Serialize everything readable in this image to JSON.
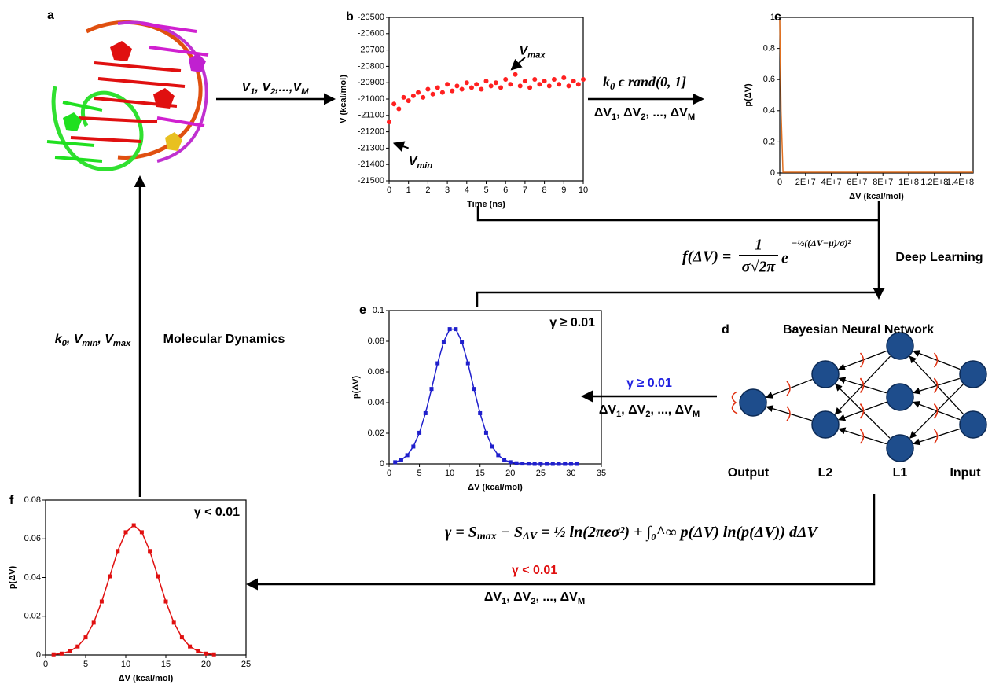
{
  "panel_labels": [
    "a",
    "b",
    "c",
    "d",
    "e",
    "f"
  ],
  "chart_data": [
    {
      "type": "scatter",
      "x_label": "Time (ns)",
      "y_label": "V (kcal/mol)",
      "color": "#ff2020",
      "xlim": [
        0,
        10
      ],
      "xticks": [
        0,
        1,
        2,
        3,
        4,
        5,
        6,
        7,
        8,
        9,
        10
      ],
      "ylim": [
        -21500,
        -20500
      ],
      "yticks": [
        -21500,
        -21400,
        -21300,
        -21200,
        -21100,
        -21000,
        -20900,
        -20800,
        -20700,
        -20600,
        -20500
      ],
      "x": [
        0,
        0.25,
        0.5,
        0.75,
        1,
        1.25,
        1.5,
        1.75,
        2,
        2.25,
        2.5,
        2.75,
        3,
        3.25,
        3.5,
        3.75,
        4,
        4.25,
        4.5,
        4.75,
        5,
        5.25,
        5.5,
        5.75,
        6,
        6.25,
        6.5,
        6.75,
        7,
        7.25,
        7.5,
        7.75,
        8,
        8.25,
        8.5,
        8.75,
        9,
        9.25,
        9.5,
        9.75,
        10
      ],
      "values": [
        -21140,
        -21030,
        -21060,
        -20990,
        -21010,
        -20980,
        -20960,
        -20990,
        -20940,
        -20970,
        -20930,
        -20960,
        -20910,
        -20950,
        -20920,
        -20940,
        -20900,
        -20930,
        -20910,
        -20940,
        -20890,
        -20920,
        -20900,
        -20930,
        -20880,
        -20910,
        -20850,
        -20920,
        -20890,
        -20930,
        -20880,
        -20910,
        -20890,
        -20920,
        -20880,
        -20910,
        -20870,
        -20920,
        -20890,
        -20910,
        -20880
      ],
      "annotations": [
        [
          "V",
          "max"
        ],
        [
          "V",
          "min"
        ]
      ]
    },
    {
      "type": "line",
      "x_label": "ΔV (kcal/mol)",
      "y_label": "p(ΔV)",
      "color": "#e07020",
      "xlim": [
        0,
        150000000
      ],
      "xticks": [
        0,
        {
          "value": 20000000,
          "label": "2E+7"
        },
        {
          "value": 40000000,
          "label": "4E+7"
        },
        {
          "value": 60000000,
          "label": "6E+7"
        },
        {
          "value": 80000000,
          "label": "8E+7"
        },
        {
          "value": 100000000,
          "label": "1E+8"
        },
        {
          "value": 120000000,
          "label": "1.2E+8"
        },
        {
          "value": 140000000,
          "label": "1.4E+8"
        }
      ],
      "ylim": [
        0,
        1
      ],
      "yticks": [
        0,
        0.2,
        0.4,
        0.6,
        0.8,
        1
      ],
      "x": [
        0,
        1000000,
        2500000,
        150000000
      ],
      "values": [
        0.98,
        0.4,
        0.005,
        0.005
      ]
    },
    {
      "type": "line",
      "markers": true,
      "x_label": "ΔV (kcal/mol)",
      "y_label": "p(ΔV)",
      "color": "#1f1fcc",
      "annotation": "γ ≥ 0.01",
      "xlim": [
        0,
        35
      ],
      "xticks": [
        0,
        5,
        10,
        15,
        20,
        25,
        30,
        35
      ],
      "ylim": [
        0,
        0.1
      ],
      "yticks": [
        0,
        0.02,
        0.04,
        0.06,
        0.08,
        0.1
      ],
      "x": [
        1,
        2,
        3,
        4,
        5,
        6,
        7,
        8,
        9,
        10,
        11,
        12,
        13,
        14,
        15,
        16,
        17,
        18,
        19,
        20,
        21,
        22,
        23,
        24,
        25,
        26,
        27,
        28,
        29,
        30,
        31
      ],
      "values": [
        0.0011,
        0.0026,
        0.0057,
        0.0113,
        0.0203,
        0.0331,
        0.0489,
        0.0656,
        0.0797,
        0.0879,
        0.0879,
        0.0797,
        0.0656,
        0.0489,
        0.0331,
        0.0203,
        0.0113,
        0.0057,
        0.0026,
        0.0011,
        0.0004,
        0.0002,
        0.0001,
        0,
        0,
        0,
        0,
        0,
        0,
        0,
        0
      ]
    },
    {
      "type": "line",
      "markers": true,
      "x_label": "ΔV (kcal/mol)",
      "y_label": "p(ΔV)",
      "color": "#e01010",
      "annotation": "γ < 0.01",
      "xlim": [
        0,
        25
      ],
      "xticks": [
        0,
        5,
        10,
        15,
        20,
        25
      ],
      "ylim": [
        0,
        0.08
      ],
      "yticks": [
        0,
        0.02,
        0.04,
        0.06,
        0.08
      ],
      "x": [
        1,
        2,
        3,
        4,
        5,
        6,
        7,
        8,
        9,
        10,
        11,
        12,
        13,
        14,
        15,
        16,
        17,
        18,
        19,
        20,
        21
      ],
      "values": [
        0.0003,
        0.0007,
        0.0019,
        0.0044,
        0.0091,
        0.0167,
        0.0276,
        0.0406,
        0.0537,
        0.0634,
        0.067,
        0.0634,
        0.0537,
        0.0406,
        0.0276,
        0.0167,
        0.0091,
        0.0044,
        0.0019,
        0.0007,
        0.0003
      ]
    }
  ],
  "flow": {
    "md_outputs": [
      "V",
      "1",
      ", V",
      "2",
      ",...,V",
      "M"
    ],
    "sampling": [
      "k",
      "0",
      " ϵ rand(0, 1]"
    ],
    "delta_list": [
      "ΔV",
      "1",
      ", ΔV",
      "2",
      ", ..., ΔV",
      "M"
    ],
    "gaussian": {
      "lhs": "f(ΔV) =",
      "numerator": "1",
      "denominator": "σ√2π",
      "base": "e",
      "exponent": "−½((ΔV−μ)/σ)²"
    },
    "deep_learning": "Deep Learning",
    "network_title": "Bayesian Neural Network",
    "layers": [
      "Output",
      "L2",
      "L1",
      "Input"
    ],
    "accept": "γ ≥ 0.01",
    "entropy": [
      "γ = S",
      "max",
      " − S",
      "ΔV",
      " = ½ ln(2πeσ²) + ∫₀^∞ p(ΔV) ln(p(ΔV)) dΔV"
    ],
    "reject": "γ < 0.01",
    "md_params": [
      "k",
      "0",
      ", V",
      "min",
      ", V",
      "max"
    ],
    "md_label": "Molecular Dynamics"
  }
}
